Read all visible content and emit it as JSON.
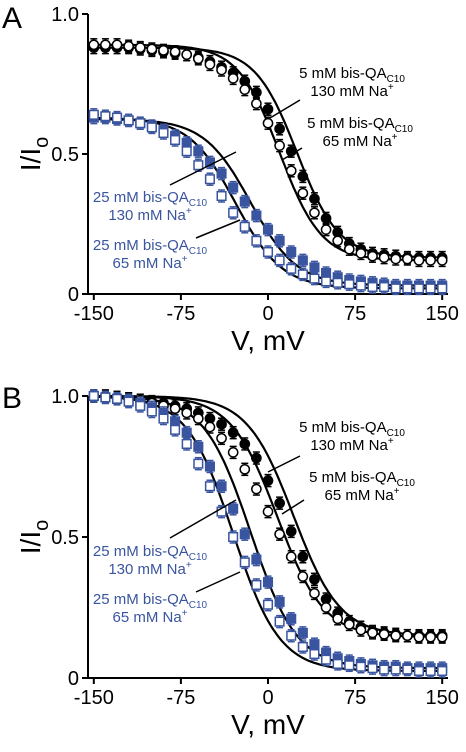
{
  "chart_data": [
    {
      "type": "line",
      "panel": "A",
      "xlabel": "V, mV",
      "ylabel": "I/Io",
      "xlim": [
        -155,
        155
      ],
      "ylim": [
        0,
        1.0
      ],
      "xticks": [
        -150,
        -75,
        0,
        75,
        150
      ],
      "yticks": [
        0,
        0.5,
        1.0
      ],
      "xtick_labels": [
        "-150",
        "-75",
        "0",
        "75",
        "150"
      ],
      "ytick_labels": [
        "0",
        "0.5",
        "1.0"
      ],
      "grid": false,
      "series": [
        {
          "key": "s1",
          "marker": "filled-circle",
          "color": "#000000",
          "x": [
            -150,
            -140,
            -130,
            -120,
            -110,
            -100,
            -90,
            -80,
            -70,
            -60,
            -50,
            -40,
            -30,
            -20,
            -10,
            0,
            10,
            20,
            30,
            40,
            50,
            60,
            70,
            80,
            90,
            100,
            110,
            120,
            130,
            140,
            150
          ],
          "y": [
            0.88,
            0.88,
            0.88,
            0.88,
            0.875,
            0.87,
            0.865,
            0.86,
            0.855,
            0.845,
            0.83,
            0.81,
            0.79,
            0.76,
            0.72,
            0.66,
            0.59,
            0.51,
            0.42,
            0.34,
            0.27,
            0.22,
            0.18,
            0.16,
            0.145,
            0.14,
            0.135,
            0.13,
            0.13,
            0.13,
            0.13
          ]
        },
        {
          "key": "s2",
          "marker": "open-circle",
          "color": "#000000",
          "x": [
            -150,
            -140,
            -130,
            -120,
            -110,
            -100,
            -90,
            -80,
            -70,
            -60,
            -50,
            -40,
            -30,
            -20,
            -10,
            0,
            10,
            20,
            30,
            40,
            50,
            60,
            70,
            80,
            90,
            100,
            110,
            120,
            130,
            140,
            150
          ],
          "y": [
            0.89,
            0.89,
            0.89,
            0.885,
            0.88,
            0.875,
            0.87,
            0.865,
            0.855,
            0.84,
            0.82,
            0.8,
            0.77,
            0.73,
            0.68,
            0.61,
            0.53,
            0.44,
            0.36,
            0.29,
            0.23,
            0.19,
            0.16,
            0.145,
            0.135,
            0.13,
            0.125,
            0.125,
            0.12,
            0.12,
            0.12
          ]
        },
        {
          "key": "s3",
          "marker": "filled-square",
          "color": "#3a55a0",
          "x": [
            -150,
            -140,
            -130,
            -120,
            -110,
            -100,
            -90,
            -80,
            -70,
            -60,
            -50,
            -40,
            -30,
            -20,
            -10,
            0,
            10,
            20,
            30,
            40,
            50,
            60,
            70,
            80,
            90,
            100,
            110,
            120,
            130,
            140,
            150
          ],
          "y": [
            0.63,
            0.63,
            0.625,
            0.62,
            0.61,
            0.6,
            0.585,
            0.565,
            0.54,
            0.51,
            0.47,
            0.43,
            0.38,
            0.33,
            0.28,
            0.23,
            0.19,
            0.15,
            0.12,
            0.095,
            0.075,
            0.06,
            0.05,
            0.045,
            0.04,
            0.035,
            0.03,
            0.03,
            0.03,
            0.03,
            0.03
          ]
        },
        {
          "key": "s4",
          "marker": "open-square",
          "color": "#3a55a0",
          "x": [
            -150,
            -140,
            -130,
            -120,
            -110,
            -100,
            -90,
            -80,
            -70,
            -60,
            -50,
            -40,
            -30,
            -20,
            -10,
            0,
            10,
            20,
            30,
            40,
            50,
            60,
            70,
            80,
            90,
            100,
            110,
            120,
            130,
            140,
            150
          ],
          "y": [
            0.64,
            0.635,
            0.63,
            0.62,
            0.61,
            0.595,
            0.575,
            0.55,
            0.51,
            0.46,
            0.41,
            0.35,
            0.29,
            0.24,
            0.19,
            0.15,
            0.12,
            0.09,
            0.07,
            0.055,
            0.045,
            0.04,
            0.035,
            0.03,
            0.025,
            0.025,
            0.02,
            0.02,
            0.02,
            0.02,
            0.02
          ]
        }
      ],
      "fit_curves": [
        {
          "key": "f1",
          "top": 0.88,
          "bottom": 0.13,
          "v_half": 25,
          "slope": 18
        },
        {
          "key": "f2",
          "top": 0.89,
          "bottom": 0.12,
          "v_half": 10,
          "slope": 18
        },
        {
          "key": "f3",
          "top": 0.625,
          "bottom": 0.03,
          "v_half": -15,
          "slope": 20
        },
        {
          "key": "f4",
          "top": 0.63,
          "bottom": 0.02,
          "v_half": -28,
          "slope": 20
        }
      ],
      "annotations": [
        {
          "key": "a1",
          "line1": "5 mM bis-QA",
          "sub": "C10",
          "line2": "130 mM Na",
          "sup": "+",
          "color": "#000000"
        },
        {
          "key": "a2",
          "line1": "5 mM bis-QA",
          "sub": "C10",
          "line2": "65 mM Na",
          "sup": "+",
          "color": "#000000"
        },
        {
          "key": "a3",
          "line1": "25 mM bis-QA",
          "sub": "C10",
          "line2": "130 mM Na",
          "sup": "+",
          "color": "#3a55a0"
        },
        {
          "key": "a4",
          "line1": "25 mM bis-QA",
          "sub": "C10",
          "line2": "65 mM Na",
          "sup": "+",
          "color": "#3a55a0"
        }
      ]
    },
    {
      "type": "line",
      "panel": "B",
      "xlabel": "V, mV",
      "ylabel": "I/Io",
      "xlim": [
        -155,
        155
      ],
      "ylim": [
        0,
        1.0
      ],
      "xticks": [
        -150,
        -75,
        0,
        75,
        150
      ],
      "yticks": [
        0,
        0.5,
        1.0
      ],
      "xtick_labels": [
        "-150",
        "-75",
        "0",
        "75",
        "150"
      ],
      "ytick_labels": [
        "0",
        "0.5",
        "1.0"
      ],
      "grid": false,
      "series": [
        {
          "key": "s1",
          "marker": "filled-circle",
          "color": "#000000",
          "x": [
            -150,
            -140,
            -130,
            -120,
            -110,
            -100,
            -90,
            -80,
            -70,
            -60,
            -50,
            -40,
            -30,
            -20,
            -10,
            0,
            10,
            20,
            30,
            40,
            50,
            60,
            70,
            80,
            90,
            100,
            110,
            120,
            130,
            140,
            150
          ],
          "y": [
            1.0,
            1.0,
            0.995,
            0.99,
            0.985,
            0.98,
            0.975,
            0.965,
            0.955,
            0.94,
            0.92,
            0.9,
            0.87,
            0.83,
            0.78,
            0.7,
            0.62,
            0.52,
            0.43,
            0.35,
            0.28,
            0.23,
            0.2,
            0.18,
            0.165,
            0.16,
            0.155,
            0.15,
            0.15,
            0.15,
            0.15
          ]
        },
        {
          "key": "s2",
          "marker": "open-circle",
          "color": "#000000",
          "x": [
            -150,
            -140,
            -130,
            -120,
            -110,
            -100,
            -90,
            -80,
            -70,
            -60,
            -50,
            -40,
            -30,
            -20,
            -10,
            0,
            10,
            20,
            30,
            40,
            50,
            60,
            70,
            80,
            90,
            100,
            110,
            120,
            130,
            140,
            150
          ],
          "y": [
            1.0,
            1.0,
            0.995,
            0.99,
            0.985,
            0.975,
            0.965,
            0.955,
            0.94,
            0.92,
            0.89,
            0.85,
            0.8,
            0.74,
            0.67,
            0.59,
            0.51,
            0.43,
            0.36,
            0.3,
            0.25,
            0.21,
            0.19,
            0.17,
            0.16,
            0.155,
            0.15,
            0.15,
            0.145,
            0.145,
            0.145
          ]
        },
        {
          "key": "s3",
          "marker": "filled-square",
          "color": "#3a55a0",
          "x": [
            -150,
            -140,
            -130,
            -120,
            -110,
            -100,
            -90,
            -80,
            -70,
            -60,
            -50,
            -40,
            -30,
            -20,
            -10,
            0,
            10,
            20,
            30,
            40,
            50,
            60,
            70,
            80,
            90,
            100,
            110,
            120,
            130,
            140,
            150
          ],
          "y": [
            1.0,
            0.995,
            0.99,
            0.985,
            0.975,
            0.96,
            0.94,
            0.91,
            0.87,
            0.82,
            0.75,
            0.68,
            0.6,
            0.51,
            0.42,
            0.34,
            0.27,
            0.21,
            0.16,
            0.12,
            0.09,
            0.07,
            0.06,
            0.05,
            0.045,
            0.04,
            0.04,
            0.035,
            0.035,
            0.035,
            0.035
          ]
        },
        {
          "key": "s4",
          "marker": "open-square",
          "color": "#3a55a0",
          "x": [
            -150,
            -140,
            -130,
            -120,
            -110,
            -100,
            -90,
            -80,
            -70,
            -60,
            -50,
            -40,
            -30,
            -20,
            -10,
            0,
            10,
            20,
            30,
            40,
            50,
            60,
            70,
            80,
            90,
            100,
            110,
            120,
            130,
            140,
            150
          ],
          "y": [
            1.0,
            0.995,
            0.99,
            0.98,
            0.965,
            0.945,
            0.92,
            0.88,
            0.83,
            0.76,
            0.68,
            0.59,
            0.5,
            0.41,
            0.33,
            0.26,
            0.2,
            0.15,
            0.11,
            0.085,
            0.065,
            0.05,
            0.045,
            0.04,
            0.035,
            0.03,
            0.03,
            0.03,
            0.025,
            0.025,
            0.025
          ]
        }
      ],
      "fit_curves": [
        {
          "key": "f1",
          "top": 1.0,
          "bottom": 0.15,
          "v_half": 22,
          "slope": 20
        },
        {
          "key": "f2",
          "top": 1.0,
          "bottom": 0.145,
          "v_half": 8,
          "slope": 20
        },
        {
          "key": "f3",
          "top": 1.0,
          "bottom": 0.035,
          "v_half": -15,
          "slope": 20
        },
        {
          "key": "f4",
          "top": 1.0,
          "bottom": 0.025,
          "v_half": -30,
          "slope": 20
        }
      ],
      "annotations": [
        {
          "key": "a1",
          "line1": "5 mM bis-QA",
          "sub": "C10",
          "line2": "130 mM Na",
          "sup": "+",
          "color": "#000000"
        },
        {
          "key": "a2",
          "line1": "5 mM bis-QA",
          "sub": "C10",
          "line2": "65 mM Na",
          "sup": "+",
          "color": "#000000"
        },
        {
          "key": "a3",
          "line1": "25 mM bis-QA",
          "sub": "C10",
          "line2": "130 mM Na",
          "sup": "+",
          "color": "#3a55a0"
        },
        {
          "key": "a4",
          "line1": "25 mM bis-QA",
          "sub": "C10",
          "line2": "65 mM Na",
          "sup": "+",
          "color": "#3a55a0"
        }
      ]
    }
  ]
}
